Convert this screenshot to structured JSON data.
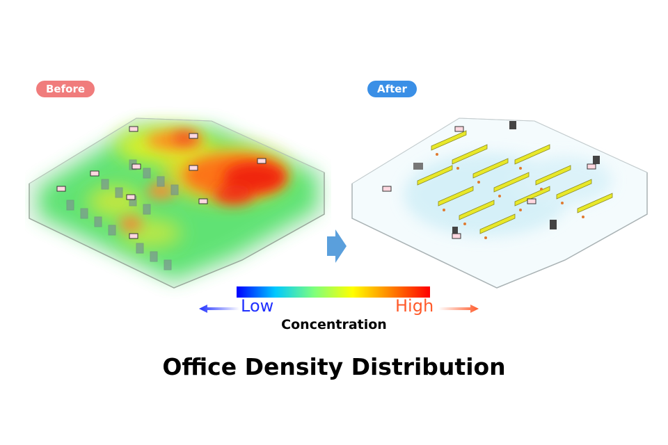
{
  "labels": {
    "before": "Before",
    "after": "After"
  },
  "legend": {
    "low": "Low",
    "high": "High",
    "caption": "Concentration",
    "colors": [
      "#0000ff",
      "#00c8ff",
      "#7dff7d",
      "#ffff00",
      "#ff8000",
      "#ff0000"
    ]
  },
  "title": "Office Density Distribution",
  "colors": {
    "before_badge": "#f07c7c",
    "after_badge": "#3a8fe6",
    "low_text": "#2030ff",
    "high_text": "#ff5a2a",
    "transition_arrow": "#5a9fdc"
  }
}
